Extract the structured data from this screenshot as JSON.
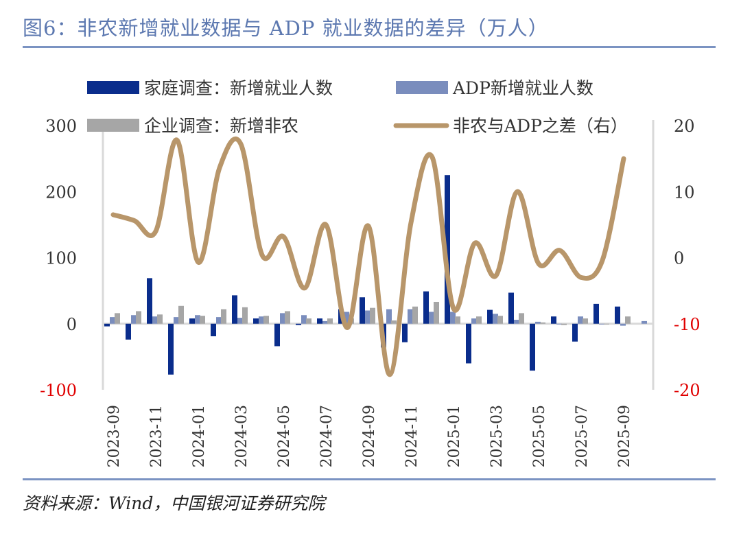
{
  "title": "图6：非农新增就业数据与 ADP 就业数据的差异（万人）",
  "source": "资料来源：Wind，中国银河证券研究院",
  "colors": {
    "household": "#0a2d8c",
    "adp": "#7a8dbd",
    "nonfarm": "#a6a6a6",
    "diff": "#b8966a",
    "title": "#5c78b0",
    "negative_tick": "#e00000"
  },
  "chart_data": {
    "type": "bar+line",
    "categories": [
      "2023-09",
      "2023-10",
      "2023-11",
      "2023-12",
      "2024-01",
      "2024-02",
      "2024-03",
      "2024-04",
      "2024-05",
      "2024-06",
      "2024-07",
      "2024-08",
      "2024-09",
      "2024-10",
      "2024-11",
      "2024-12",
      "2025-01",
      "2025-02",
      "2025-03",
      "2025-04",
      "2025-05",
      "2025-06",
      "2025-07",
      "2025-08",
      "2025-09",
      "2025-10"
    ],
    "x_tick_labels": [
      "2023-09",
      "2023-11",
      "2024-01",
      "2024-03",
      "2024-05",
      "2024-07",
      "2024-09",
      "2024-11",
      "2025-01",
      "2025-03",
      "2025-05",
      "2025-07",
      "2025-09"
    ],
    "left_axis": {
      "ylim": [
        -100,
        300
      ],
      "ticks": [
        "300",
        "200",
        "100",
        "0",
        "-100"
      ]
    },
    "right_axis": {
      "ylim": [
        -20,
        20
      ],
      "ticks": [
        "20",
        "10",
        "0",
        "-10",
        "-20"
      ]
    },
    "legend_placement": "top",
    "series": [
      {
        "name": "家庭调查：新增就业人数",
        "type": "bar",
        "axis": "left",
        "values": [
          -4,
          -24,
          69,
          -77,
          8,
          -19,
          43,
          8,
          -34,
          -2,
          8,
          22,
          40,
          -36,
          -28,
          49,
          225,
          -60,
          21,
          47,
          -71,
          11,
          -27,
          30,
          26,
          null
        ]
      },
      {
        "name": "ADP新增就业人数",
        "type": "bar",
        "axis": "left",
        "values": [
          10,
          13,
          11,
          10,
          13,
          10,
          9,
          11,
          16,
          13,
          4,
          18,
          20,
          22,
          22,
          18,
          18,
          8,
          15,
          6,
          3,
          -1,
          11,
          0,
          -3,
          4
        ]
      },
      {
        "name": "企业调查：新增非农",
        "type": "bar",
        "axis": "left",
        "values": [
          16,
          19,
          14,
          27,
          12,
          22,
          25,
          12,
          19,
          8,
          8,
          8,
          24,
          5,
          26,
          33,
          11,
          11,
          12,
          16,
          2,
          -2,
          8,
          0,
          11,
          null
        ]
      },
      {
        "name": "非农与ADP之差（右）",
        "type": "line",
        "axis": "right",
        "values": [
          6.5,
          5.6,
          4,
          17.8,
          -0.7,
          13.6,
          17.2,
          0.4,
          3.2,
          -4.6,
          5,
          -10.6,
          4.8,
          -17.7,
          5.3,
          15.2,
          -7.7,
          2.2,
          -2.7,
          10,
          -0.9,
          1.1,
          -3,
          -0.4,
          15,
          null
        ]
      }
    ]
  }
}
